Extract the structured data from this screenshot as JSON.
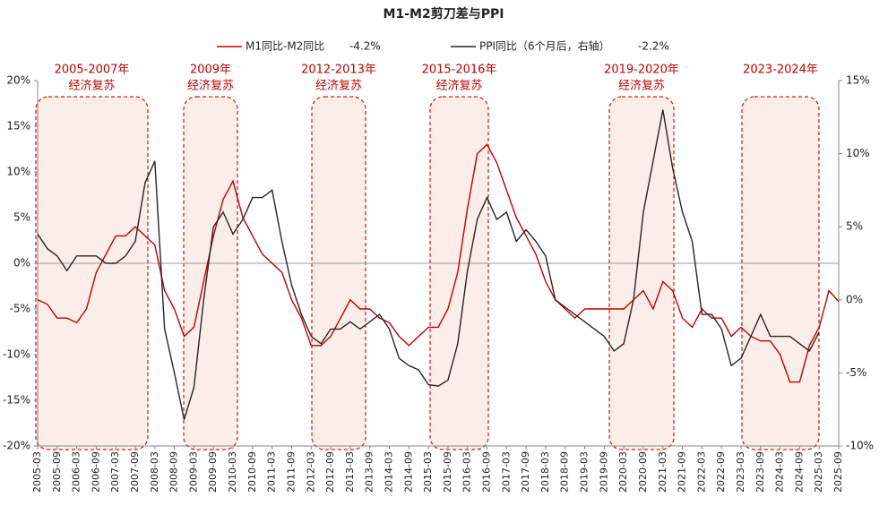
{
  "chart_data": {
    "type": "line",
    "title": "M1-M2剪刀差与PPI",
    "x": [
      "2005-03",
      null,
      "2005-09",
      null,
      "2006-03",
      null,
      "2006-09",
      null,
      "2007-03",
      null,
      "2007-09",
      null,
      "2008-03",
      null,
      "2008-09",
      null,
      "2009-03",
      null,
      "2009-09",
      null,
      "2010-03",
      null,
      "2010-09",
      null,
      "2011-03",
      null,
      "2011-09",
      null,
      "2012-03",
      null,
      "2012-09",
      null,
      "2013-03",
      null,
      "2013-09",
      null,
      "2014-03",
      null,
      "2014-09",
      null,
      "2015-03",
      null,
      "2015-09",
      null,
      "2016-03",
      null,
      "2016-09",
      null,
      "2017-03",
      null,
      "2017-09",
      null,
      "2018-03",
      null,
      "2018-09",
      null,
      "2019-03",
      null,
      "2019-09",
      null,
      "2020-03",
      null,
      "2020-09",
      null,
      "2021-03",
      null,
      "2021-09",
      null,
      "2022-03",
      null,
      "2022-09",
      null,
      "2023-03",
      null,
      "2023-09",
      null,
      "2024-03",
      null,
      "2024-09",
      null,
      "2025-03",
      null,
      "2025-09"
    ],
    "series": [
      {
        "name": "M1同比-M2同比",
        "last_label": "-4.2%",
        "color": "#c00000",
        "axis": "y",
        "values": [
          -4,
          -4.5,
          -6,
          -6,
          -6.5,
          -5,
          -1,
          1,
          3,
          3,
          4,
          3,
          2,
          -3,
          -5,
          -8,
          -7,
          -2,
          3,
          7,
          9,
          5,
          3,
          1,
          0,
          -1,
          -4,
          -6,
          -9,
          -9,
          -8,
          -6,
          -4,
          -5,
          -5,
          -6,
          -6.5,
          -8,
          -9,
          -8,
          -7,
          -7,
          -5,
          -1,
          6,
          12,
          13,
          11,
          8,
          5,
          3,
          1,
          -2,
          -4,
          -5,
          -6,
          -5,
          -5,
          -5,
          -5,
          -5,
          -4,
          -3,
          -5,
          -2,
          -3,
          -6,
          -7,
          -5,
          -6,
          -6,
          -8,
          -7,
          -8,
          -8.5,
          -8.5,
          -10,
          -13,
          -13,
          -9,
          -7,
          -3,
          -4.2
        ]
      },
      {
        "name": "PPI同比（6个月后，右轴）",
        "last_label": "-2.2%",
        "color": "#262626",
        "axis": "y2",
        "values": [
          4.5,
          3.5,
          3,
          2,
          3,
          3,
          3,
          2.5,
          2.5,
          3,
          4,
          8,
          9.5,
          -2,
          -5,
          -8.2,
          -6,
          0,
          5,
          6,
          4.5,
          5.5,
          7,
          7,
          7.5,
          4,
          1,
          -1,
          -2.5,
          -3,
          -2,
          -2,
          -1.5,
          -2,
          -1.5,
          -1,
          -2,
          -4,
          -4.5,
          -4.8,
          -5.8,
          -5.9,
          -5.5,
          -3,
          2,
          5.5,
          7,
          5.5,
          6,
          4,
          4.8,
          4,
          3,
          0,
          -0.5,
          -1,
          -1.5,
          -2,
          -2.5,
          -3.5,
          -3,
          0,
          6,
          9.5,
          13,
          9,
          6,
          4,
          -1,
          -1,
          -2,
          -4.5,
          -4,
          -2.5,
          -1,
          -2.5,
          -2.5,
          -2.5,
          -3,
          -3.5,
          -2.2,
          null,
          null
        ]
      }
    ],
    "ylim": [
      -20,
      20
    ],
    "yticks": [
      {
        "value": -20,
        "label": "-20%"
      },
      {
        "value": -15,
        "label": "-15%"
      },
      {
        "value": -10,
        "label": "-10%"
      },
      {
        "value": -5,
        "label": "-5%"
      },
      {
        "value": 0,
        "label": "0%"
      },
      {
        "value": 5,
        "label": "5%"
      },
      {
        "value": 10,
        "label": "10%"
      },
      {
        "value": 15,
        "label": "15%"
      },
      {
        "value": 20,
        "label": "20%"
      }
    ],
    "y2lim": [
      -10,
      15
    ],
    "y2ticks": [
      {
        "value": -10,
        "label": "-10%"
      },
      {
        "value": -5,
        "label": "-5%"
      },
      {
        "value": 0,
        "label": "0%"
      },
      {
        "value": 5,
        "label": "5%"
      },
      {
        "value": 10,
        "label": "10%"
      },
      {
        "value": 15,
        "label": "15%"
      }
    ],
    "annotations": [
      {
        "lines": [
          "2005-2007年",
          "经济复苏"
        ]
      },
      {
        "lines": [
          "2009年",
          "经济复苏"
        ]
      },
      {
        "lines": [
          "2012-2013年",
          "经济复苏"
        ]
      },
      {
        "lines": [
          "2015-2016年",
          "经济复苏"
        ]
      },
      {
        "lines": [
          "2019-2020年",
          "经济复苏"
        ]
      },
      {
        "lines": [
          "2023-2024年"
        ]
      }
    ]
  }
}
